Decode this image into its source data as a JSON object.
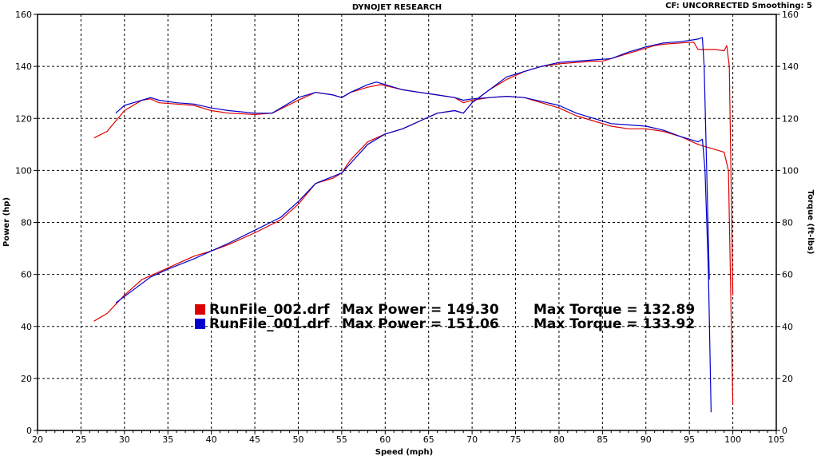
{
  "chart_data": {
    "type": "line",
    "title": "DYNOJET RESEARCH",
    "header_right": "CF: UNCORRECTED  Smoothing: 5",
    "xlabel": "Speed (mph)",
    "ylabel": "Power (hp)",
    "y2label": "Torque (ft-lbs)",
    "xlim": [
      20,
      105
    ],
    "ylim": [
      0,
      160
    ],
    "y2lim": [
      0,
      160
    ],
    "x_ticks": [
      20,
      25,
      30,
      35,
      40,
      45,
      50,
      55,
      60,
      65,
      70,
      75,
      80,
      85,
      90,
      95,
      100,
      105
    ],
    "y_ticks": [
      0,
      20,
      40,
      60,
      80,
      100,
      120,
      140,
      160
    ],
    "grid": true,
    "legend": [
      {
        "color": "#dd0000",
        "file": "RunFile_002.drf",
        "power_label": "Max Power = 149.30",
        "torque_label": "Max Torque = 132.89"
      },
      {
        "color": "#0000cc",
        "file": "RunFile_001.drf",
        "power_label": "Max Power = 151.06",
        "torque_label": "Max Torque = 133.92"
      }
    ],
    "series": [
      {
        "name": "RunFile_002.drf Power",
        "color": "#dd0000",
        "x": [
          26.5,
          28,
          30,
          32,
          34,
          36,
          38,
          40,
          42,
          45,
          48,
          50,
          52,
          54,
          55,
          56,
          58,
          60,
          62,
          64,
          66,
          68,
          69,
          70,
          72,
          74,
          76,
          78,
          80,
          82,
          84,
          85,
          86,
          88,
          90,
          91,
          92,
          94,
          95.5,
          96,
          98,
          99,
          99.3,
          99.6,
          100
        ],
        "values": [
          42,
          45,
          52,
          58,
          61,
          64,
          67,
          69,
          71.5,
          76,
          81,
          87,
          95,
          97,
          99,
          104,
          111,
          114,
          116,
          119,
          122,
          123,
          122,
          126,
          131,
          135,
          138,
          140,
          141,
          141.5,
          142,
          142,
          143,
          145,
          147,
          148,
          148.5,
          149,
          149.3,
          146.5,
          146.5,
          146,
          148,
          140,
          52
        ]
      },
      {
        "name": "RunFile_002.drf Torque",
        "color": "#dd0000",
        "x": [
          26.5,
          28,
          30,
          32,
          33,
          34,
          36,
          38,
          40,
          42,
          45,
          47,
          50,
          52,
          54,
          55,
          56,
          58,
          59.5,
          62,
          64,
          66,
          68,
          69,
          70,
          72,
          74,
          76,
          78,
          80,
          82,
          84,
          85,
          86,
          88,
          90,
          92,
          94,
          96,
          97,
          98,
          99,
          99.5,
          100
        ],
        "values": [
          112.5,
          115,
          123,
          127,
          127.5,
          126,
          125.5,
          125,
          123,
          122,
          121.5,
          122,
          127,
          130,
          129,
          128,
          130,
          132,
          133,
          131,
          130,
          129,
          128,
          126,
          127,
          128,
          128.5,
          128,
          126,
          124,
          121,
          119,
          118,
          117,
          116,
          116,
          115,
          113,
          110,
          109,
          108,
          107,
          100,
          10
        ]
      },
      {
        "name": "RunFile_001.drf Power",
        "color": "#0000cc",
        "x": [
          29,
          31,
          33,
          35,
          38,
          40,
          42,
          45,
          48,
          50,
          52,
          55,
          58,
          60,
          62,
          64,
          66,
          68,
          69,
          70,
          72,
          74,
          76,
          78,
          80,
          82,
          84,
          86,
          88,
          90,
          92,
          94,
          95,
          96,
          96.5,
          96.7,
          97,
          97.3
        ],
        "values": [
          49,
          54,
          59,
          62,
          66,
          69,
          72,
          77,
          82,
          88,
          95,
          99,
          110,
          114,
          116,
          119,
          122,
          123,
          122,
          126,
          131,
          136,
          138,
          140,
          141.5,
          142,
          142.5,
          143,
          145.5,
          147.5,
          149,
          149.5,
          150,
          150.5,
          151.06,
          140,
          100,
          58
        ]
      },
      {
        "name": "RunFile_001.drf Torque",
        "color": "#0000cc",
        "x": [
          29,
          30,
          32,
          33,
          34,
          36,
          38,
          40,
          42,
          45,
          47,
          50,
          52,
          54,
          55,
          56,
          58,
          59,
          62,
          64,
          66,
          68,
          69,
          70,
          72,
          74,
          76,
          78,
          80,
          82,
          84,
          86,
          88,
          90,
          92,
          94,
          95,
          96,
          96.5,
          96.8,
          97.2,
          97.5
        ],
        "values": [
          122,
          125,
          127,
          128,
          127,
          126,
          125.5,
          124,
          123,
          122,
          122,
          128,
          130,
          129,
          128,
          130,
          133,
          134,
          131,
          130,
          129,
          128,
          127,
          127.5,
          128,
          128.5,
          128,
          126.5,
          125,
          122,
          120,
          118,
          117.5,
          117,
          115.5,
          113,
          112,
          111,
          112,
          100,
          60,
          7
        ]
      }
    ]
  }
}
